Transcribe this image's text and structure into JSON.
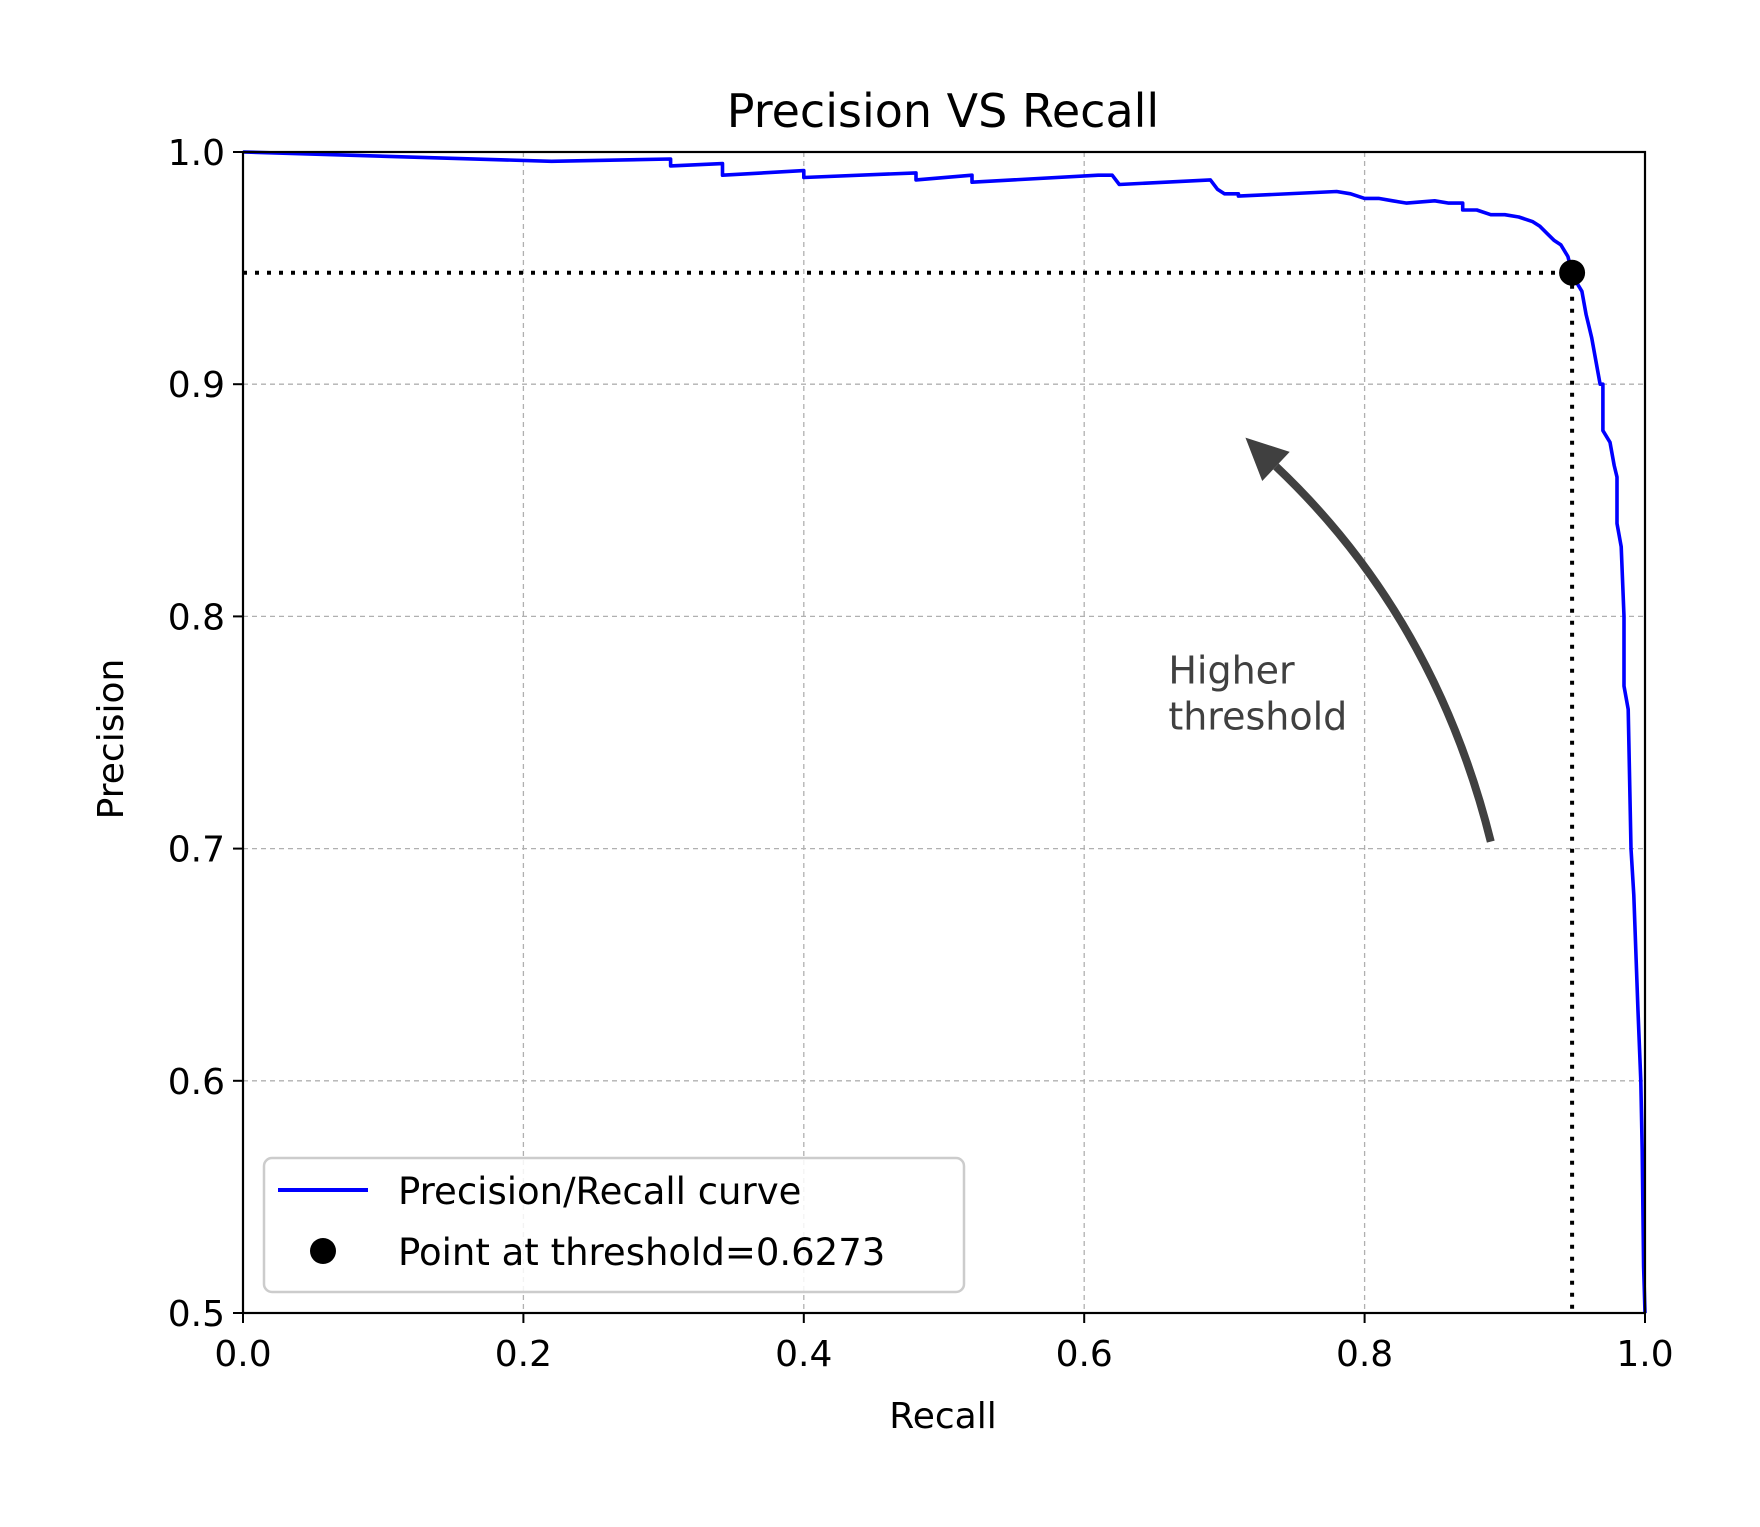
{
  "chart_data": {
    "type": "line",
    "title": "Precision VS Recall",
    "xlabel": "Recall",
    "ylabel": "Precision",
    "xlim": [
      0.0,
      1.0
    ],
    "ylim": [
      0.5,
      1.0
    ],
    "xticks": [
      0.0,
      0.2,
      0.4,
      0.6,
      0.8,
      1.0
    ],
    "xtick_labels": [
      "0.0",
      "0.2",
      "0.4",
      "0.6",
      "0.8",
      "1.0"
    ],
    "yticks": [
      0.5,
      0.6,
      0.7,
      0.8,
      0.9,
      1.0
    ],
    "ytick_labels": [
      "0.5",
      "0.6",
      "0.7",
      "0.8",
      "0.9",
      "1.0"
    ],
    "grid": true,
    "legend_position": "lower-left",
    "series": [
      {
        "name": "Precision/Recall curve",
        "color": "#0000ff",
        "style": "line",
        "x": [
          0.0,
          0.22,
          0.305,
          0.305,
          0.342,
          0.342,
          0.4,
          0.4,
          0.48,
          0.48,
          0.52,
          0.52,
          0.61,
          0.62,
          0.625,
          0.69,
          0.695,
          0.7,
          0.71,
          0.71,
          0.78,
          0.79,
          0.8,
          0.81,
          0.82,
          0.83,
          0.85,
          0.86,
          0.87,
          0.87,
          0.88,
          0.89,
          0.9,
          0.91,
          0.92,
          0.925,
          0.93,
          0.935,
          0.94,
          0.945,
          0.948,
          0.95,
          0.955,
          0.958,
          0.96,
          0.962,
          0.965,
          0.968,
          0.97,
          0.97,
          0.975,
          0.978,
          0.98,
          0.98,
          0.983,
          0.985,
          0.985,
          0.988,
          0.99,
          0.992,
          0.995,
          0.997,
          0.998,
          0.999,
          1.0
        ],
        "y": [
          1.0,
          0.996,
          0.997,
          0.994,
          0.995,
          0.99,
          0.992,
          0.989,
          0.991,
          0.988,
          0.99,
          0.987,
          0.99,
          0.99,
          0.986,
          0.988,
          0.984,
          0.982,
          0.982,
          0.981,
          0.983,
          0.982,
          0.98,
          0.98,
          0.979,
          0.978,
          0.979,
          0.978,
          0.978,
          0.975,
          0.975,
          0.973,
          0.973,
          0.972,
          0.97,
          0.968,
          0.965,
          0.962,
          0.96,
          0.955,
          0.948,
          0.945,
          0.94,
          0.93,
          0.925,
          0.92,
          0.91,
          0.9,
          0.9,
          0.88,
          0.875,
          0.865,
          0.86,
          0.84,
          0.83,
          0.8,
          0.77,
          0.76,
          0.7,
          0.68,
          0.63,
          0.6,
          0.57,
          0.52,
          0.5
        ]
      },
      {
        "name": "Point at threshold=0.6273",
        "color": "#000000",
        "style": "point",
        "x": [
          0.948
        ],
        "y": [
          0.948
        ]
      }
    ],
    "reference_lines": {
      "recall": 0.948,
      "precision": 0.948,
      "style": "dotted",
      "color": "#000000"
    },
    "annotations": [
      {
        "text_lines": [
          "Higher",
          "threshold"
        ],
        "color": "#404040",
        "arrow": {
          "from": [
            0.89,
            0.703
          ],
          "control": [
            0.85,
            0.8
          ],
          "to": [
            0.715,
            0.877
          ],
          "color": "#404040"
        },
        "text_at": [
          0.66,
          0.771
        ]
      }
    ]
  }
}
